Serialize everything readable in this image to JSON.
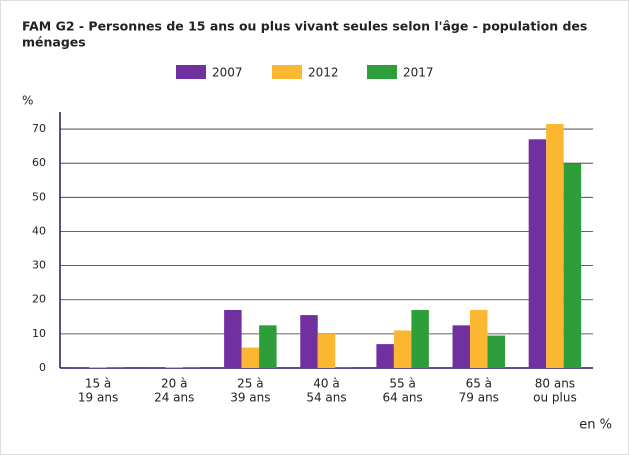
{
  "chart_data": {
    "type": "bar",
    "title": [
      "FAM G2 - Personnes de 15 ans ou plus vivant seules selon l'âge - population des",
      "ménages"
    ],
    "y_label": "%",
    "x_label": "en %",
    "categories": [
      [
        "15 à",
        "19 ans"
      ],
      [
        "20 à",
        "24 ans"
      ],
      [
        "25 à",
        "39 ans"
      ],
      [
        "40 à",
        "54 ans"
      ],
      [
        "55 à",
        "64 ans"
      ],
      [
        "65 à",
        "79 ans"
      ],
      [
        "80 ans",
        "ou plus"
      ]
    ],
    "series": [
      {
        "name": "2007",
        "color": "#7030a0",
        "values": [
          0.2,
          0.2,
          17,
          15.5,
          7,
          12.5,
          67
        ]
      },
      {
        "name": "2012",
        "color": "#fbb732",
        "values": [
          0.3,
          0.3,
          6,
          10,
          11,
          17,
          71.5
        ]
      },
      {
        "name": "2017",
        "color": "#2e9e3a",
        "values": [
          0.2,
          0.2,
          12.5,
          0.3,
          17,
          9.5,
          60
        ]
      }
    ],
    "ylim": [
      0,
      75
    ],
    "yticks": [
      0,
      10,
      20,
      30,
      40,
      50,
      60,
      70
    ],
    "grid": true
  }
}
